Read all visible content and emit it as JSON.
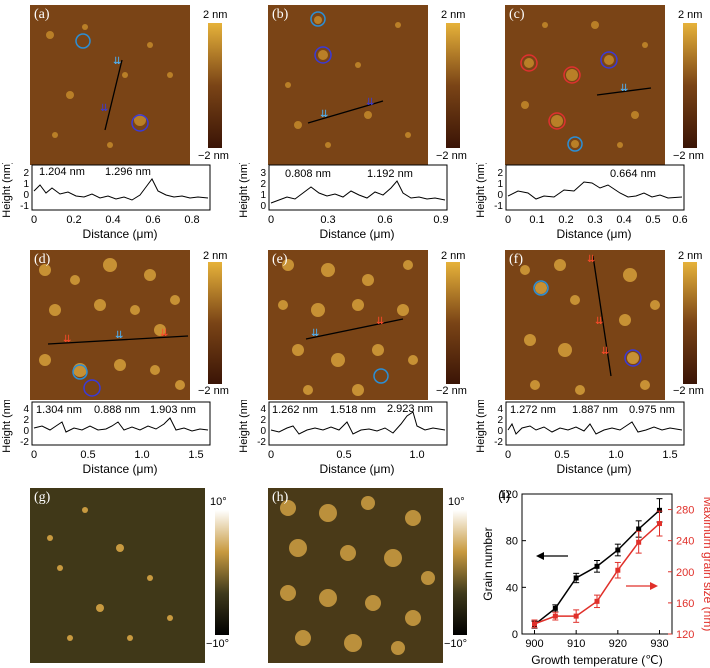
{
  "colorbar_height": {
    "top": "2 nm",
    "bottom": "−2 nm"
  },
  "colorbar_phase": {
    "top": "10°",
    "bottom": "−10°"
  },
  "profile_ylabel": "Height (nm)",
  "profile_xlabel": "Distance (μm)",
  "panels": [
    {
      "label": "(a)",
      "annotations": [
        "1.204 nm",
        "1.296 nm"
      ],
      "xticks": [
        "0",
        "0.2",
        "0.4",
        "0.6",
        "0.8"
      ],
      "yticks": [
        "2",
        "1",
        "0",
        "-1"
      ]
    },
    {
      "label": "(b)",
      "annotations": [
        "0.808 nm",
        "1.192 nm"
      ],
      "xticks": [
        "0",
        "0.3",
        "0.6",
        "0.9"
      ],
      "yticks": [
        "3",
        "2",
        "1",
        "0"
      ]
    },
    {
      "label": "(c)",
      "annotations": [
        "0.664 nm"
      ],
      "xticks": [
        "0",
        "0.1",
        "0.2",
        "0.3",
        "0.4",
        "0.5",
        "0.6"
      ],
      "yticks": [
        "2",
        "1",
        "0",
        "-1"
      ]
    },
    {
      "label": "(d)",
      "annotations": [
        "1.304 nm",
        "0.888 nm",
        "1.903 nm"
      ],
      "xticks": [
        "0",
        "0.5",
        "1.0",
        "1.5"
      ],
      "yticks": [
        "4",
        "2",
        "0",
        "-2"
      ]
    },
    {
      "label": "(e)",
      "annotations": [
        "1.262 nm",
        "1.518 nm",
        "2.923 nm"
      ],
      "xticks": [
        "0",
        "0.5",
        "1.0"
      ],
      "yticks": [
        "4",
        "2",
        "0",
        "-2"
      ]
    },
    {
      "label": "(f)",
      "annotations": [
        "1.272 nm",
        "1.887 nm",
        "0.975 nm"
      ],
      "xticks": [
        "0",
        "0.5",
        "1.0",
        "1.5"
      ],
      "yticks": [
        "4",
        "2",
        "0",
        "-2"
      ]
    },
    {
      "label": "(g)"
    },
    {
      "label": "(h)"
    },
    {
      "label": "(i)"
    }
  ],
  "chart_data": {
    "type": "line",
    "title": "",
    "xlabel": "Growth temperature (℃)",
    "ylabel": "Grain number",
    "y2label": "Maximum grain size (nm)",
    "x": [
      900,
      905,
      910,
      915,
      920,
      925,
      930
    ],
    "xticks": [
      "900",
      "910",
      "920",
      "930"
    ],
    "xlim": [
      897,
      933
    ],
    "ylim": [
      0,
      120
    ],
    "yticks": [
      "0",
      "40",
      "80",
      "120"
    ],
    "y2lim": [
      120,
      300
    ],
    "y2ticks": [
      "120",
      "160",
      "200",
      "240",
      "280"
    ],
    "series": [
      {
        "name": "",
        "axis": "left",
        "color": "#000000",
        "values": [
          8,
          22,
          48,
          58,
          72,
          90,
          106
        ],
        "errors": [
          3,
          3,
          4,
          5,
          5,
          7,
          10
        ]
      },
      {
        "name": "",
        "axis": "right",
        "color": "#e0302a",
        "values": [
          133,
          143,
          143,
          162,
          202,
          238,
          262
        ],
        "errors": [
          5,
          5,
          8,
          8,
          10,
          14,
          16
        ]
      }
    ]
  }
}
